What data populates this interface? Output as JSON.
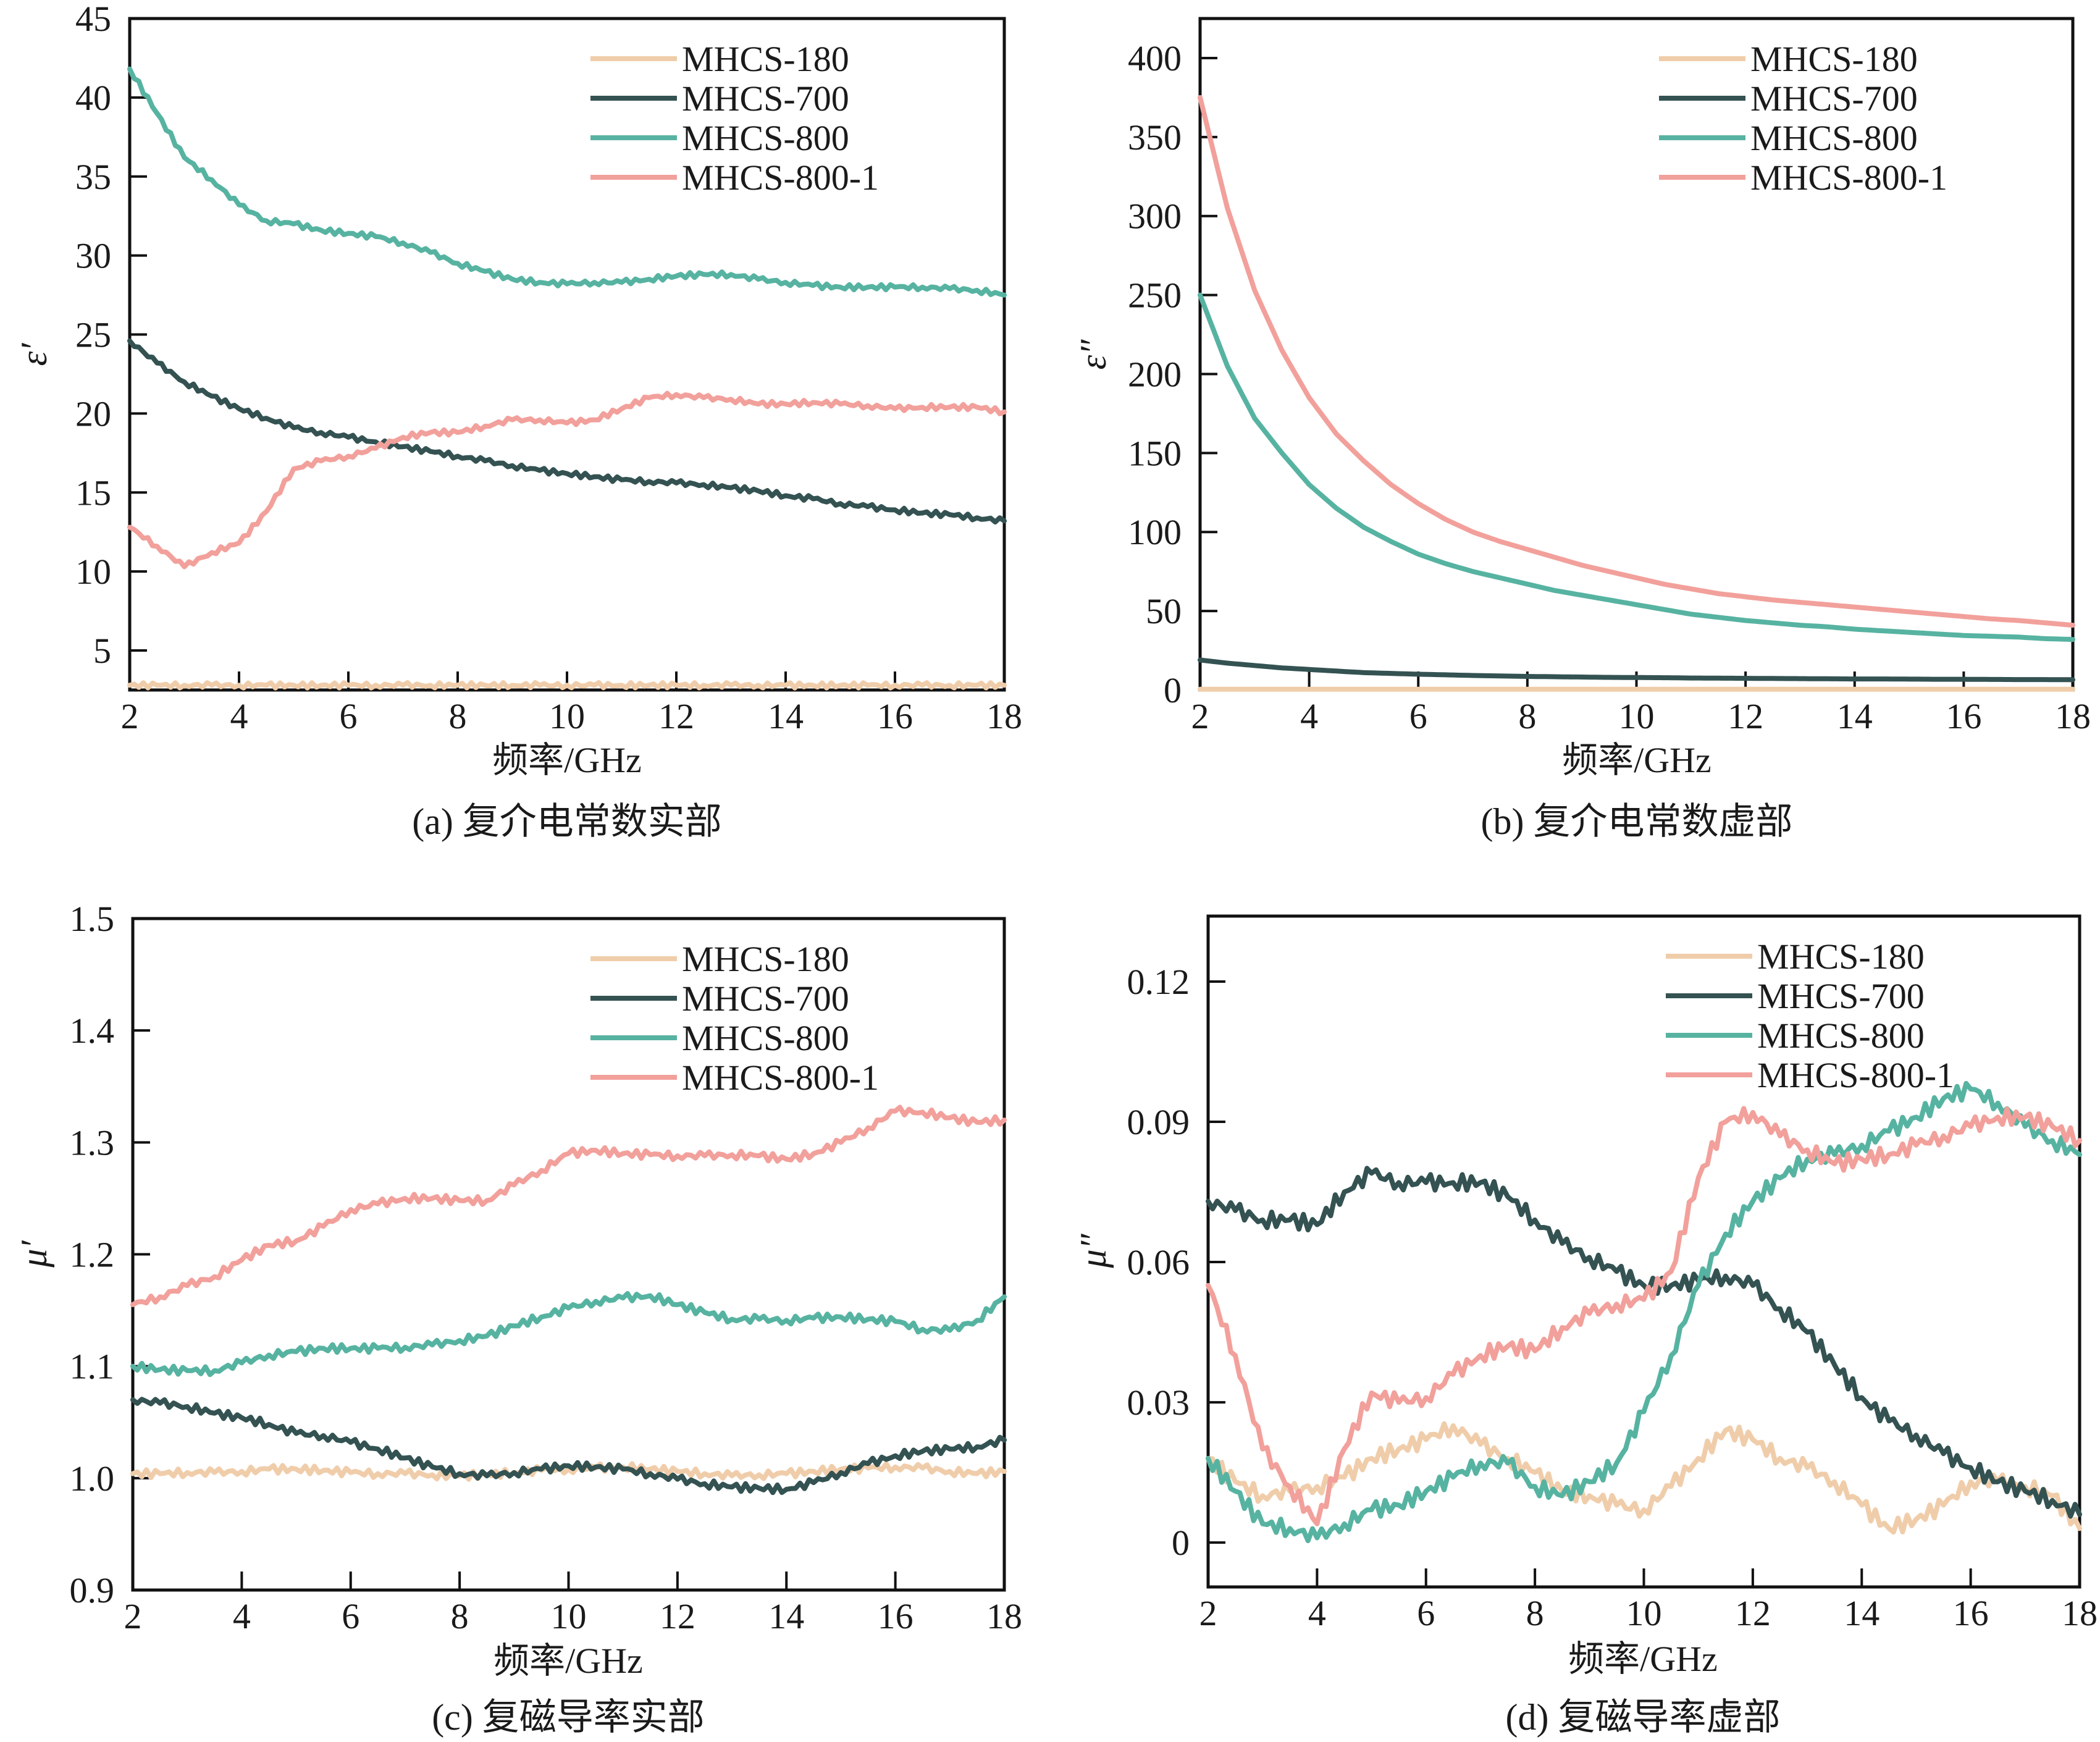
{
  "figure": {
    "series_names": [
      "MHCS-180",
      "MHCS-700",
      "MHCS-800",
      "MHCS-800-1"
    ],
    "colors": {
      "MHCS-180": "#F0CDAA",
      "MHCS-700": "#345252",
      "MHCS-800": "#57B3A1",
      "MHCS-800-1": "#F2A09B"
    }
  },
  "chart_data": [
    {
      "id": "a",
      "type": "line",
      "caption": "(a) 复介电常数实部",
      "xlabel": "频率/GHz",
      "ylabel": "ε′",
      "xlim": [
        2,
        18
      ],
      "ylim": [
        2.5,
        45
      ],
      "xticks": [
        2,
        4,
        6,
        8,
        10,
        12,
        14,
        16,
        18
      ],
      "yticks": [
        5,
        10,
        15,
        20,
        25,
        30,
        35,
        40,
        45
      ],
      "ytick_labels": [
        "5",
        "10",
        "15",
        "20",
        "25",
        "30",
        "35",
        "40",
        "45"
      ],
      "legend": "top-right",
      "x": [
        2,
        2.5,
        3,
        3.5,
        4,
        4.5,
        5,
        5.5,
        6,
        6.5,
        7,
        7.5,
        8,
        8.5,
        9,
        9.5,
        10,
        10.5,
        11,
        11.5,
        12,
        12.5,
        13,
        13.5,
        14,
        14.5,
        15,
        15.5,
        16,
        16.5,
        17,
        17.5,
        18
      ],
      "series": [
        {
          "name": "MHCS-180",
          "values": [
            2.8,
            2.8,
            2.8,
            2.8,
            2.8,
            2.8,
            2.8,
            2.8,
            2.8,
            2.8,
            2.8,
            2.8,
            2.8,
            2.8,
            2.8,
            2.8,
            2.8,
            2.8,
            2.8,
            2.8,
            2.8,
            2.8,
            2.8,
            2.8,
            2.8,
            2.8,
            2.8,
            2.8,
            2.8,
            2.8,
            2.8,
            2.8,
            2.8
          ]
        },
        {
          "name": "MHCS-700",
          "values": [
            24.6,
            23.2,
            22.0,
            21.1,
            20.3,
            19.7,
            19.1,
            18.8,
            18.5,
            18.2,
            17.9,
            17.6,
            17.3,
            17.0,
            16.7,
            16.4,
            16.2,
            16.0,
            15.8,
            15.7,
            15.6,
            15.5,
            15.3,
            15.1,
            14.8,
            14.6,
            14.3,
            14.1,
            13.9,
            13.7,
            13.6,
            13.4,
            13.2
          ]
        },
        {
          "name": "MHCS-800",
          "values": [
            41.8,
            39.0,
            36.2,
            34.8,
            33.2,
            32.2,
            32.0,
            31.6,
            31.4,
            31.2,
            30.8,
            30.2,
            29.5,
            29.0,
            28.5,
            28.3,
            28.2,
            28.3,
            28.3,
            28.5,
            28.7,
            28.8,
            28.8,
            28.5,
            28.3,
            28.1,
            28.0,
            28.0,
            28.0,
            28.0,
            27.9,
            27.8,
            27.5
          ]
        },
        {
          "name": "MHCS-800-1",
          "values": [
            12.8,
            11.6,
            10.3,
            11.2,
            11.8,
            13.8,
            16.5,
            17.0,
            17.3,
            17.8,
            18.5,
            18.8,
            18.8,
            19.2,
            19.6,
            19.6,
            19.4,
            19.6,
            20.3,
            21.0,
            21.2,
            21.0,
            20.9,
            20.6,
            20.6,
            20.7,
            20.6,
            20.5,
            20.3,
            20.4,
            20.4,
            20.4,
            20.1
          ]
        }
      ]
    },
    {
      "id": "b",
      "type": "line",
      "caption": "(b) 复介电常数虚部",
      "xlabel": "频率/GHz",
      "ylabel": "ε″",
      "xlim": [
        2,
        18
      ],
      "ylim": [
        0,
        425
      ],
      "xticks": [
        2,
        4,
        6,
        8,
        10,
        12,
        14,
        16,
        18
      ],
      "yticks": [
        0,
        50,
        100,
        150,
        200,
        250,
        300,
        350,
        400
      ],
      "ytick_labels": [
        "0",
        "50",
        "100",
        "150",
        "200",
        "250",
        "300",
        "350",
        "400"
      ],
      "legend": "top-right",
      "x": [
        2,
        2.5,
        3,
        3.5,
        4,
        4.5,
        5,
        5.5,
        6,
        6.5,
        7,
        7.5,
        8,
        8.5,
        9,
        9.5,
        10,
        10.5,
        11,
        11.5,
        12,
        12.5,
        13,
        13.5,
        14,
        14.5,
        15,
        15.5,
        16,
        16.5,
        17,
        17.5,
        18
      ],
      "series": [
        {
          "name": "MHCS-180",
          "values": [
            0.5,
            0.5,
            0.5,
            0.5,
            0.5,
            0.5,
            0.5,
            0.5,
            0.5,
            0.5,
            0.5,
            0.5,
            0.5,
            0.5,
            0.5,
            0.5,
            0.5,
            0.5,
            0.5,
            0.5,
            0.5,
            0.5,
            0.5,
            0.5,
            0.5,
            0.5,
            0.5,
            0.5,
            0.5,
            0.5,
            0.5,
            0.5,
            0.5
          ]
        },
        {
          "name": "MHCS-700",
          "values": [
            19,
            17,
            15.5,
            14,
            13,
            12,
            11,
            10.5,
            10,
            9.6,
            9.2,
            8.9,
            8.6,
            8.4,
            8.2,
            8.0,
            7.9,
            7.8,
            7.6,
            7.5,
            7.4,
            7.3,
            7.2,
            7.1,
            7.0,
            7.0,
            6.9,
            6.8,
            6.8,
            6.7,
            6.6,
            6.6,
            6.5
          ]
        },
        {
          "name": "MHCS-800",
          "values": [
            250,
            205,
            172,
            150,
            130,
            115,
            103,
            94,
            86,
            80,
            75,
            71,
            67,
            63,
            60,
            57,
            54,
            51,
            48,
            46,
            44,
            42.5,
            41,
            40,
            38.5,
            37.5,
            36.5,
            35.5,
            34.5,
            34,
            33.5,
            32.5,
            32
          ]
        },
        {
          "name": "MHCS-800-1",
          "values": [
            375,
            305,
            253,
            215,
            185,
            162,
            145,
            130,
            118,
            108,
            100,
            94,
            89,
            84,
            79,
            75,
            71,
            67,
            64,
            61,
            59,
            57,
            55.5,
            54,
            52.5,
            51,
            49.5,
            48,
            46.5,
            45,
            44,
            42.5,
            41
          ]
        }
      ]
    },
    {
      "id": "c",
      "type": "line",
      "caption": "(c) 复磁导率实部",
      "xlabel": "频率/GHz",
      "ylabel": "μ′",
      "xlim": [
        2,
        18
      ],
      "ylim": [
        0.9,
        1.5
      ],
      "xticks": [
        2,
        4,
        6,
        8,
        10,
        12,
        14,
        16,
        18
      ],
      "yticks": [
        0.9,
        1.0,
        1.1,
        1.2,
        1.3,
        1.4,
        1.5
      ],
      "ytick_labels": [
        "0.9",
        "1.0",
        "1.1",
        "1.2",
        "1.3",
        "1.4",
        "1.5"
      ],
      "legend": "top-right",
      "x": [
        2,
        2.5,
        3,
        3.5,
        4,
        4.5,
        5,
        5.5,
        6,
        6.5,
        7,
        7.5,
        8,
        8.5,
        9,
        9.5,
        10,
        10.5,
        11,
        11.5,
        12,
        12.5,
        13,
        13.5,
        14,
        14.5,
        15,
        15.5,
        16,
        16.5,
        17,
        17.5,
        18
      ],
      "series": [
        {
          "name": "MHCS-180",
          "values": [
            1.004,
            1.004,
            1.005,
            1.005,
            1.006,
            1.008,
            1.008,
            1.007,
            1.005,
            1.004,
            1.004,
            1.003,
            1.002,
            1.003,
            1.005,
            1.007,
            1.008,
            1.009,
            1.01,
            1.008,
            1.006,
            1.004,
            1.002,
            1.003,
            1.004,
            1.006,
            1.008,
            1.009,
            1.01,
            1.009,
            1.006,
            1.004,
            1.006
          ]
        },
        {
          "name": "MHCS-700",
          "values": [
            1.07,
            1.067,
            1.064,
            1.058,
            1.054,
            1.048,
            1.04,
            1.038,
            1.032,
            1.026,
            1.018,
            1.01,
            1.004,
            1.002,
            1.005,
            1.008,
            1.011,
            1.01,
            1.008,
            1.004,
            0.999,
            0.995,
            0.992,
            0.991,
            0.99,
            0.996,
            1.005,
            1.013,
            1.02,
            1.024,
            1.026,
            1.028,
            1.034
          ]
        },
        {
          "name": "MHCS-800",
          "values": [
            1.1,
            1.097,
            1.096,
            1.096,
            1.103,
            1.11,
            1.113,
            1.116,
            1.116,
            1.116,
            1.117,
            1.119,
            1.123,
            1.127,
            1.136,
            1.144,
            1.152,
            1.158,
            1.161,
            1.163,
            1.155,
            1.148,
            1.142,
            1.142,
            1.141,
            1.143,
            1.144,
            1.142,
            1.14,
            1.133,
            1.132,
            1.141,
            1.162
          ]
        },
        {
          "name": "MHCS-800-1",
          "values": [
            1.155,
            1.162,
            1.172,
            1.18,
            1.195,
            1.208,
            1.212,
            1.225,
            1.24,
            1.245,
            1.25,
            1.25,
            1.248,
            1.248,
            1.262,
            1.275,
            1.29,
            1.293,
            1.29,
            1.289,
            1.288,
            1.288,
            1.289,
            1.288,
            1.285,
            1.29,
            1.3,
            1.313,
            1.328,
            1.327,
            1.322,
            1.318,
            1.32
          ]
        }
      ]
    },
    {
      "id": "d",
      "type": "line",
      "caption": "(d) 复磁导率虚部",
      "xlabel": "频率/GHz",
      "ylabel": "μ″",
      "xlim": [
        2,
        18
      ],
      "ylim": [
        -0.0095,
        0.134
      ],
      "xticks": [
        2,
        4,
        6,
        8,
        10,
        12,
        14,
        16,
        18
      ],
      "yticks": [
        0,
        0.03,
        0.06,
        0.09,
        0.12
      ],
      "ytick_labels": [
        "0",
        "0.03",
        "0.06",
        "0.09",
        "0.12"
      ],
      "legend": "top-right",
      "x": [
        2,
        2.5,
        3,
        3.5,
        4,
        4.5,
        5,
        5.5,
        6,
        6.5,
        7,
        7.5,
        8,
        8.5,
        9,
        9.5,
        10,
        10.5,
        11,
        11.5,
        12,
        12.5,
        13,
        13.5,
        14,
        14.5,
        15,
        15.5,
        16,
        16.5,
        17,
        17.5,
        18
      ],
      "series": [
        {
          "name": "MHCS-180",
          "values": [
            0.018,
            0.013,
            0.01,
            0.011,
            0.012,
            0.014,
            0.018,
            0.02,
            0.022,
            0.025,
            0.021,
            0.018,
            0.015,
            0.011,
            0.01,
            0.008,
            0.007,
            0.012,
            0.018,
            0.024,
            0.022,
            0.018,
            0.016,
            0.013,
            0.008,
            0.003,
            0.005,
            0.008,
            0.013,
            0.013,
            0.012,
            0.01,
            0.003
          ]
        },
        {
          "name": "MHCS-700",
          "values": [
            0.073,
            0.071,
            0.069,
            0.069,
            0.068,
            0.075,
            0.079,
            0.077,
            0.077,
            0.077,
            0.077,
            0.074,
            0.069,
            0.064,
            0.061,
            0.058,
            0.055,
            0.055,
            0.056,
            0.057,
            0.055,
            0.05,
            0.045,
            0.038,
            0.031,
            0.026,
            0.023,
            0.019,
            0.016,
            0.013,
            0.011,
            0.009,
            0.006
          ]
        },
        {
          "name": "MHCS-800",
          "values": [
            0.018,
            0.011,
            0.004,
            0.003,
            0.001,
            0.004,
            0.007,
            0.008,
            0.011,
            0.014,
            0.017,
            0.017,
            0.012,
            0.01,
            0.013,
            0.017,
            0.028,
            0.04,
            0.055,
            0.066,
            0.073,
            0.078,
            0.082,
            0.083,
            0.085,
            0.088,
            0.091,
            0.095,
            0.097,
            0.094,
            0.089,
            0.086,
            0.083
          ]
        },
        {
          "name": "MHCS-800-1",
          "values": [
            0.055,
            0.04,
            0.02,
            0.012,
            0.004,
            0.02,
            0.032,
            0.03,
            0.031,
            0.036,
            0.04,
            0.042,
            0.041,
            0.046,
            0.049,
            0.051,
            0.052,
            0.058,
            0.078,
            0.09,
            0.092,
            0.087,
            0.084,
            0.081,
            0.082,
            0.083,
            0.085,
            0.087,
            0.089,
            0.091,
            0.091,
            0.089,
            0.086
          ]
        }
      ]
    }
  ]
}
